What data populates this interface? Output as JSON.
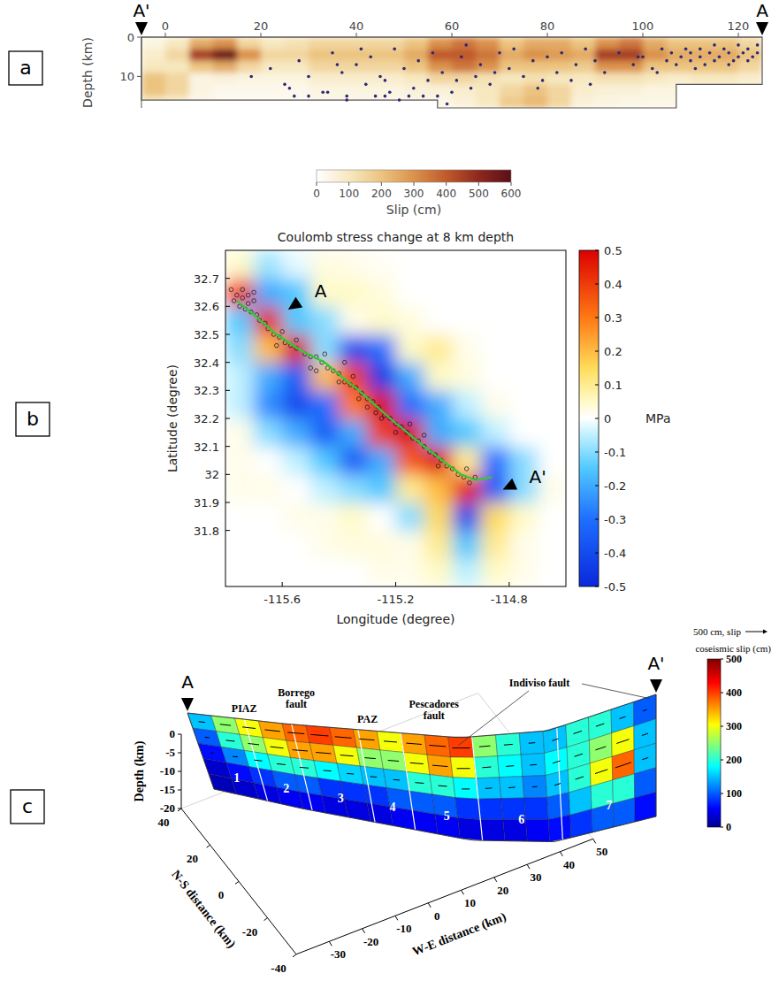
{
  "chart_data": [
    {
      "type": "slip_map",
      "label": "a",
      "ends": [
        "A'",
        "A"
      ],
      "ylabel": "Depth (km)",
      "xlim": [
        -5,
        125
      ],
      "xticks": [
        0,
        20,
        40,
        60,
        80,
        100,
        120
      ],
      "ylim": [
        0,
        18
      ],
      "yticks": [
        0,
        10
      ],
      "cell_x": [
        -5,
        0,
        5,
        10,
        15,
        20,
        25,
        30,
        35,
        40,
        45,
        50,
        55,
        60,
        65,
        70,
        75,
        80,
        85,
        90,
        95,
        100,
        105,
        110,
        115,
        120,
        125
      ],
      "cell_depth": [
        0,
        3,
        6,
        9,
        12,
        15,
        18
      ],
      "cells": [
        [
          50,
          100,
          250,
          300,
          150,
          100,
          120,
          150,
          150,
          150,
          150,
          200,
          300,
          350,
          300,
          200,
          250,
          250,
          200,
          300,
          350,
          250,
          200,
          200,
          200,
          150
        ],
        [
          80,
          150,
          450,
          550,
          300,
          150,
          150,
          200,
          200,
          200,
          200,
          250,
          400,
          400,
          350,
          250,
          300,
          280,
          250,
          450,
          450,
          300,
          250,
          250,
          250,
          200
        ],
        [
          100,
          100,
          200,
          250,
          150,
          100,
          100,
          150,
          150,
          150,
          150,
          200,
          300,
          350,
          300,
          200,
          200,
          200,
          180,
          300,
          300,
          200,
          200,
          200,
          200,
          150
        ],
        [
          200,
          150,
          50,
          60,
          50,
          50,
          50,
          80,
          80,
          80,
          80,
          100,
          150,
          150,
          120,
          100,
          120,
          100,
          100,
          120,
          120,
          100,
          80,
          100,
          100,
          80
        ],
        [
          200,
          150,
          50,
          30,
          30,
          30,
          30,
          50,
          50,
          50,
          50,
          60,
          60,
          80,
          100,
          150,
          200,
          150,
          80,
          60,
          60,
          50,
          50,
          50,
          50,
          50
        ],
        [
          100,
          80,
          30,
          20,
          20,
          20,
          20,
          30,
          30,
          30,
          30,
          40,
          40,
          60,
          100,
          180,
          220,
          150,
          60,
          50,
          40,
          40,
          40,
          40,
          40,
          40
        ]
      ],
      "outline": {
        "x": [
          -5,
          125,
          125,
          107,
          107,
          57,
          57,
          -5
        ],
        "depth": [
          0,
          0,
          12,
          12,
          18,
          18,
          16,
          16
        ]
      },
      "aftershocks": {
        "x": [
          22,
          25,
          28,
          30,
          33,
          35,
          37,
          38,
          40,
          42,
          43,
          45,
          46,
          48,
          50,
          52,
          53,
          55,
          56,
          58,
          60,
          62,
          63,
          65,
          66,
          68,
          70,
          72,
          73,
          75,
          77,
          78,
          80,
          82,
          83,
          85,
          86,
          88,
          90,
          92,
          95,
          98,
          100,
          102,
          104,
          105,
          106,
          107,
          108,
          109,
          110,
          110,
          111,
          112,
          112,
          113,
          114,
          115,
          115,
          116,
          117,
          118,
          118,
          119,
          120,
          120,
          121,
          122,
          122,
          123,
          124,
          124,
          30,
          34,
          38,
          44,
          47,
          51,
          54,
          57,
          61,
          64,
          18,
          27,
          41,
          49,
          59,
          69,
          79,
          89,
          99,
          103,
          26,
          36,
          46
        ],
        "depth": [
          8,
          12,
          6,
          10,
          14,
          4,
          9,
          16,
          7,
          12,
          5,
          10,
          15,
          3,
          8,
          13,
          6,
          11,
          4,
          9,
          14,
          5,
          2,
          10,
          7,
          12,
          4,
          8,
          3,
          10,
          6,
          13,
          5,
          9,
          4,
          11,
          7,
          3,
          6,
          9,
          4,
          7,
          5,
          8,
          3,
          6,
          4,
          7,
          5,
          3,
          6,
          4,
          8,
          5,
          3,
          7,
          4,
          6,
          2,
          5,
          3,
          7,
          4,
          6,
          2,
          5,
          4,
          6,
          3,
          5,
          2,
          4,
          15,
          14,
          15,
          15,
          14,
          15,
          15,
          15,
          11,
          13,
          10,
          15,
          3,
          16,
          17,
          9,
          11,
          12,
          5,
          9,
          13,
          7,
          11
        ]
      },
      "colorbar": {
        "label": "Slip (cm)",
        "lim": [
          0,
          600
        ],
        "ticks": [
          0,
          100,
          200,
          300,
          400,
          500,
          600
        ]
      }
    },
    {
      "type": "stress_map",
      "label": "b",
      "title": "Coulomb stress change at 8 km depth",
      "xlabel": "Longitude (degree)",
      "ylabel": "Latitude (degree)",
      "xlim": [
        -115.8,
        -114.6
      ],
      "xticks": [
        -115.6,
        -115.2,
        -114.8
      ],
      "ylim": [
        31.6,
        32.8
      ],
      "yticks": [
        31.8,
        31.9,
        32,
        32.1,
        32.2,
        32.3,
        32.4,
        32.5,
        32.6,
        32.7
      ],
      "cell_lon": [
        -115.8,
        -115.7,
        -115.6,
        -115.5,
        -115.4,
        -115.3,
        -115.2,
        -115.1,
        -115,
        -114.9,
        -114.8,
        -114.7,
        -114.6
      ],
      "cell_lat": [
        31.6,
        31.7,
        31.8,
        31.9,
        32,
        32.1,
        32.2,
        32.3,
        32.4,
        32.5,
        32.6,
        32.7,
        32.8
      ],
      "cells": [
        [
          0,
          0,
          0,
          0,
          0,
          0.02,
          0.02,
          0.05,
          -0.05,
          0.05,
          0.02,
          0
        ],
        [
          0,
          0,
          0,
          0.02,
          0.03,
          0.03,
          0.02,
          0.1,
          -0.15,
          0.1,
          0.02,
          0
        ],
        [
          0,
          0,
          0.02,
          0.02,
          0.05,
          0,
          -0.1,
          0.15,
          -0.4,
          0.15,
          0.05,
          0
        ],
        [
          0.02,
          0.02,
          0,
          -0.05,
          -0.1,
          -0.15,
          0.1,
          0.2,
          0.45,
          -0.35,
          -0.1,
          0.02
        ],
        [
          0.02,
          0,
          -0.05,
          -0.15,
          -0.35,
          -0.2,
          0.35,
          0.5,
          0.1,
          -0.3,
          -0.1,
          0
        ],
        [
          0.02,
          -0.1,
          -0.2,
          -0.35,
          -0.2,
          0.4,
          0.5,
          -0.2,
          -0.15,
          -0.05,
          0,
          0
        ],
        [
          -0.05,
          -0.25,
          -0.4,
          -0.3,
          0.3,
          0.5,
          -0.3,
          -0.2,
          -0.05,
          0.02,
          0,
          0
        ],
        [
          -0.05,
          -0.2,
          -0.35,
          0.2,
          0.4,
          -0.45,
          -0.2,
          0.05,
          0.03,
          0,
          0,
          0
        ],
        [
          -0.1,
          0.2,
          0.5,
          -0.1,
          -0.4,
          -0.3,
          0.05,
          0.1,
          0.02,
          0,
          0,
          0
        ],
        [
          -0.15,
          0.45,
          -0.15,
          -0.1,
          0.02,
          0.05,
          0.03,
          0,
          0,
          0,
          0,
          0
        ],
        [
          0.4,
          -0.2,
          -0.15,
          0.05,
          0.05,
          0.03,
          0,
          0,
          0,
          0,
          0,
          0
        ],
        [
          0.05,
          -0.08,
          -0.02,
          0.03,
          0.02,
          0.01,
          0,
          0,
          0,
          0,
          0,
          0
        ]
      ],
      "trace": {
        "lon": [
          -115.76,
          -115.7,
          -115.62,
          -115.53,
          -115.45,
          -115.38,
          -115.33,
          -115.22,
          -115.1,
          -114.97,
          -114.92,
          -114.86
        ],
        "lat": [
          32.62,
          32.57,
          32.5,
          32.44,
          32.4,
          32.34,
          32.3,
          32.2,
          32.1,
          32.0,
          31.98,
          31.99
        ]
      },
      "aftershocks": {
        "lon": [
          -115.76,
          -115.75,
          -115.74,
          -115.73,
          -115.72,
          -115.71,
          -115.7,
          -115.74,
          -115.77,
          -115.72,
          -115.69,
          -115.68,
          -115.66,
          -115.65,
          -115.63,
          -115.61,
          -115.59,
          -115.57,
          -115.55,
          -115.52,
          -115.5,
          -115.48,
          -115.46,
          -115.44,
          -115.42,
          -115.4,
          -115.38,
          -115.36,
          -115.34,
          -115.32,
          -115.3,
          -115.28,
          -115.26,
          -115.24,
          -115.22,
          -115.2,
          -115.18,
          -115.16,
          -115.14,
          -115.12,
          -115.1,
          -115.08,
          -115.06,
          -115.04,
          -115.02,
          -115.0,
          -114.98,
          -114.96,
          -114.94,
          -114.92,
          -115.35,
          -115.25,
          -115.15,
          -115.45,
          -115.3,
          -115.2,
          -115.1,
          -115.6,
          -115.5,
          -115.4,
          -115.7,
          -115.55,
          -115.05,
          -114.95,
          -115.33,
          -115.27,
          -115.62,
          -115.78,
          -115.48,
          -115.38
        ],
        "lat": [
          32.64,
          32.6,
          32.63,
          32.59,
          32.61,
          32.58,
          32.62,
          32.66,
          32.62,
          32.64,
          32.57,
          32.55,
          32.54,
          32.52,
          32.5,
          32.49,
          32.47,
          32.46,
          32.45,
          32.43,
          32.42,
          32.42,
          32.4,
          32.38,
          32.37,
          32.36,
          32.33,
          32.32,
          32.31,
          32.29,
          32.27,
          32.26,
          32.24,
          32.21,
          32.2,
          32.18,
          32.17,
          32.15,
          32.13,
          32.12,
          32.1,
          32.08,
          32.07,
          32.05,
          32.03,
          32.02,
          32.0,
          31.99,
          31.97,
          31.99,
          32.35,
          32.2,
          32.18,
          32.43,
          32.24,
          32.15,
          32.14,
          32.51,
          32.38,
          32.33,
          32.65,
          32.48,
          32.03,
          32.02,
          32.27,
          32.22,
          32.46,
          32.66,
          32.37,
          32.4
        ]
      },
      "ends": [
        "A",
        "A'"
      ],
      "colorbar": {
        "label": "MPa",
        "lim": [
          -0.5,
          0.5
        ],
        "ticks": [
          -0.5,
          -0.4,
          -0.3,
          -0.2,
          -0.1,
          0,
          0.1,
          0.2,
          0.3,
          0.4,
          0.5
        ]
      }
    },
    {
      "type": "fault_3d",
      "label": "c",
      "ends": [
        "A",
        "A'"
      ],
      "zlabel": "Depth (km)",
      "ylabel": "N-S distance (km)",
      "xlabel": "W-E distance (km)",
      "xlim": [
        -40,
        50
      ],
      "xticks": [
        -30,
        -20,
        -10,
        0,
        10,
        20,
        30,
        40,
        50
      ],
      "ylim": [
        -40,
        40
      ],
      "yticks": [
        -40,
        -20,
        0,
        20,
        40
      ],
      "zlim": [
        -20,
        0
      ],
      "zticks": [
        -20,
        -15,
        -10,
        -5,
        0
      ],
      "fault_names": [
        "PIAZ",
        "Borrego fault",
        "PAZ",
        "Pescadores fault",
        "Indiviso fault"
      ],
      "segments": [
        1,
        2,
        3,
        4,
        5,
        6,
        7
      ],
      "cell_depth": [
        0,
        -4,
        -8,
        -12,
        -16,
        -20
      ],
      "cells": [
        [
          150,
          250,
          300,
          350,
          380,
          400,
          380,
          350,
          300,
          350,
          380,
          400,
          250,
          200,
          150,
          150,
          200,
          200,
          150,
          100
        ],
        [
          100,
          200,
          250,
          300,
          350,
          350,
          300,
          250,
          250,
          300,
          350,
          300,
          200,
          180,
          150,
          180,
          200,
          250,
          300,
          150
        ],
        [
          60,
          120,
          180,
          200,
          200,
          180,
          160,
          150,
          150,
          200,
          200,
          180,
          150,
          150,
          120,
          150,
          200,
          300,
          380,
          150
        ],
        [
          30,
          60,
          80,
          100,
          100,
          80,
          80,
          80,
          100,
          100,
          100,
          80,
          80,
          80,
          80,
          100,
          150,
          200,
          200,
          100
        ],
        [
          20,
          30,
          40,
          50,
          50,
          40,
          40,
          40,
          50,
          50,
          50,
          40,
          40,
          40,
          50,
          60,
          80,
          100,
          100,
          60
        ]
      ],
      "colorbar": {
        "label": "coseismic slip (cm)",
        "lim": [
          0,
          500
        ],
        "ticks": [
          0,
          100,
          200,
          300,
          400,
          500
        ]
      },
      "scale_arrow": {
        "label": "500 cm, slip",
        "value": 500
      }
    }
  ]
}
